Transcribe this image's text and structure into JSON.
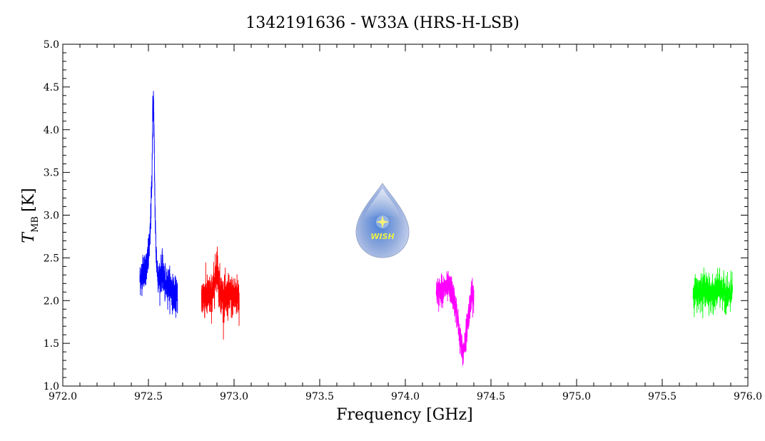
{
  "chart_data": {
    "type": "line",
    "title": "1342191636 - W33A (HRS-H-LSB)",
    "xlabel": "Frequency [GHz]",
    "ylabel_main": "T",
    "ylabel_sub": "MB",
    "ylabel_unit": "[K]",
    "xlim": [
      972.0,
      976.0
    ],
    "ylim": [
      1.0,
      5.0
    ],
    "x_ticks": [
      "972.0",
      "972.5",
      "973.0",
      "973.5",
      "974.0",
      "974.5",
      "975.0",
      "975.5",
      "976.0"
    ],
    "y_ticks": [
      "1.0",
      "1.5",
      "2.0",
      "2.5",
      "3.0",
      "3.5",
      "4.0",
      "4.5",
      "5.0"
    ],
    "grid": false,
    "legend": "none",
    "series": [
      {
        "color": "#0000ff",
        "x": [
          972.45,
          972.47,
          972.49,
          972.5,
          972.51,
          972.52,
          972.525,
          972.53,
          972.535,
          972.54,
          972.545,
          972.55,
          972.56,
          972.58,
          972.6,
          972.62,
          972.64,
          972.66,
          972.67
        ],
        "y": [
          2.25,
          2.35,
          2.4,
          2.5,
          2.75,
          3.4,
          4.2,
          4.35,
          3.6,
          2.9,
          2.55,
          2.4,
          2.25,
          2.35,
          2.15,
          2.2,
          2.1,
          2.05,
          2.05
        ]
      },
      {
        "color": "#ff0000",
        "x": [
          972.81,
          972.84,
          972.87,
          972.89,
          972.9,
          972.91,
          972.93,
          972.95,
          972.97,
          973.0,
          973.03
        ],
        "y": [
          2.05,
          2.05,
          2.05,
          2.25,
          2.45,
          2.2,
          2.05,
          2.0,
          2.05,
          2.05,
          2.05
        ]
      },
      {
        "color": "#ff00ff",
        "x": [
          974.18,
          974.21,
          974.24,
          974.26,
          974.28,
          974.3,
          974.32,
          974.335,
          974.35,
          974.37,
          974.385,
          974.4
        ],
        "y": [
          2.1,
          2.12,
          2.15,
          2.15,
          2.05,
          1.85,
          1.55,
          1.35,
          1.55,
          1.85,
          2.05,
          2.05
        ]
      },
      {
        "color": "#00ff00",
        "x": [
          975.68,
          975.71,
          975.74,
          975.77,
          975.8,
          975.83,
          975.86,
          975.89,
          975.91
        ],
        "y": [
          2.1,
          2.1,
          2.15,
          2.1,
          2.05,
          2.15,
          2.1,
          2.05,
          2.1
        ]
      }
    ],
    "noise": [
      0.18,
      0.22,
      0.15,
      0.17
    ]
  },
  "logo": {
    "text": "WISH",
    "color": "#b8c8e8"
  }
}
